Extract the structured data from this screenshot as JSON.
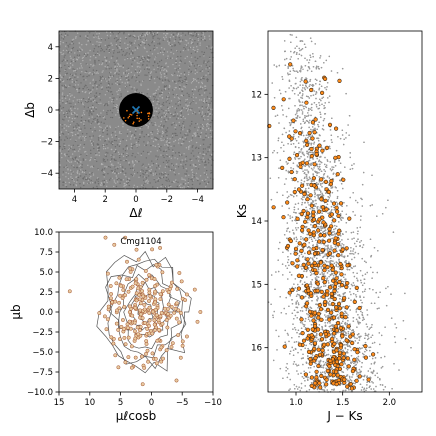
{
  "chart_data": [
    {
      "panel": "spatial",
      "type": "scatter",
      "xlabel": "Δℓ",
      "ylabel": "Δb",
      "xlim": [
        5,
        -5
      ],
      "ylim": [
        -5,
        5
      ],
      "xticks": [
        "4",
        "2",
        "0",
        "−2",
        "−4"
      ],
      "xtick_values": [
        4,
        2,
        0,
        -2,
        -4
      ],
      "yticks": [
        "4",
        "2",
        "0",
        "−2",
        "−4"
      ],
      "ytick_values": [
        4,
        2,
        0,
        -2,
        -4
      ],
      "field_color": "#808080",
      "hole": {
        "center": [
          0,
          0
        ],
        "radius": 1.1,
        "color": "#000000"
      },
      "center_marker": {
        "x": 0,
        "y": 0,
        "symbol": "x",
        "color": "#1f77b4"
      },
      "member_color": "#ff7f0e"
    },
    {
      "panel": "proper-motion",
      "type": "scatter",
      "title": "Cmg1104",
      "xlabel": "μℓcosb",
      "ylabel": "μb",
      "xlim": [
        15,
        -10
      ],
      "ylim": [
        -10,
        10
      ],
      "xticks": [
        "15",
        "10",
        "5",
        "0",
        "−5",
        "−10"
      ],
      "xtick_values": [
        15,
        10,
        5,
        0,
        -5,
        -10
      ],
      "yticks": [
        "10.0",
        "7.5",
        "5.0",
        "2.5",
        "0.0",
        "−2.5",
        "−5.0",
        "−7.5",
        "−10.0"
      ],
      "ytick_values": [
        10,
        7.5,
        5,
        2.5,
        0,
        -2.5,
        -5,
        -7.5,
        -10
      ],
      "point_fill": "#e8c9a0",
      "point_edge": "#a0522d",
      "contour_color": "#555555",
      "cloud": {
        "center": [
          1,
          0
        ],
        "sigma": [
          3.2,
          3.2
        ],
        "n": 260
      },
      "contour_radii": [
        1.2,
        2.2,
        3.2,
        4.2,
        5.2,
        6.2,
        7.0
      ]
    },
    {
      "panel": "cmd",
      "type": "scatter",
      "xlabel": "J − Ks",
      "ylabel": "Ks",
      "xlim": [
        0.7,
        2.35
      ],
      "ylim": [
        16.7,
        11.0
      ],
      "xticks": [
        "1.0",
        "1.5",
        "2.0"
      ],
      "xtick_values": [
        1.0,
        1.5,
        2.0
      ],
      "yticks": [
        "12",
        "13",
        "14",
        "15",
        "16"
      ],
      "ytick_values": [
        12,
        13,
        14,
        15,
        16
      ],
      "field_color": "#9a9a9a",
      "member_fill": "#ff8c1a",
      "member_edge": "#3a2a1a",
      "member_n": 420
    }
  ]
}
